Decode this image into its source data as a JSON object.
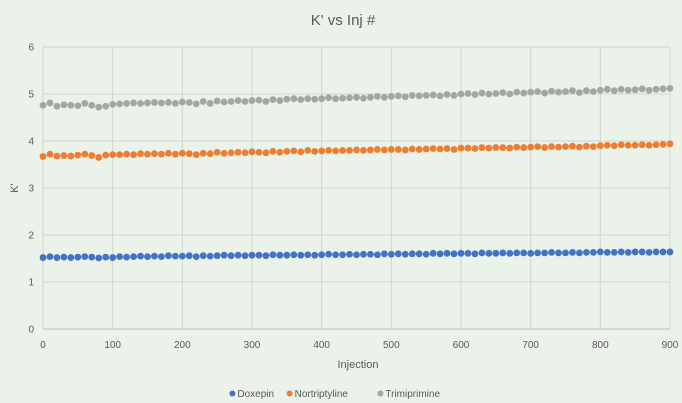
{
  "chart_data": {
    "type": "scatter",
    "title": "K' vs Inj #",
    "xlabel": "Injection",
    "ylabel": "K'",
    "xlim": [
      0,
      900
    ],
    "ylim": [
      0,
      6
    ],
    "xticks": [
      0,
      100,
      200,
      300,
      400,
      500,
      600,
      700,
      800,
      900
    ],
    "yticks": [
      0,
      1,
      2,
      3,
      4,
      5,
      6
    ],
    "grid": true,
    "legend_position": "bottom",
    "series": [
      {
        "name": "Doxepin",
        "color": "#4472c4",
        "x": [
          0,
          10,
          20,
          30,
          40,
          50,
          60,
          70,
          80,
          90,
          100,
          110,
          120,
          130,
          140,
          150,
          160,
          170,
          180,
          190,
          200,
          210,
          220,
          230,
          240,
          250,
          260,
          270,
          280,
          290,
          300,
          310,
          320,
          330,
          340,
          350,
          360,
          370,
          380,
          390,
          400,
          410,
          420,
          430,
          440,
          450,
          460,
          470,
          480,
          490,
          500,
          510,
          520,
          530,
          540,
          550,
          560,
          570,
          580,
          590,
          600,
          610,
          620,
          630,
          640,
          650,
          660,
          670,
          680,
          690,
          700,
          710,
          720,
          730,
          740,
          750,
          760,
          770,
          780,
          790,
          800,
          810,
          820,
          830,
          840,
          850,
          860,
          870,
          880,
          890,
          900
        ],
        "y": [
          1.52,
          1.54,
          1.52,
          1.53,
          1.52,
          1.53,
          1.54,
          1.53,
          1.51,
          1.53,
          1.52,
          1.54,
          1.53,
          1.54,
          1.55,
          1.54,
          1.55,
          1.54,
          1.56,
          1.55,
          1.55,
          1.56,
          1.54,
          1.56,
          1.55,
          1.56,
          1.57,
          1.56,
          1.57,
          1.56,
          1.57,
          1.57,
          1.56,
          1.58,
          1.57,
          1.57,
          1.58,
          1.57,
          1.58,
          1.57,
          1.58,
          1.59,
          1.58,
          1.58,
          1.59,
          1.58,
          1.59,
          1.59,
          1.58,
          1.6,
          1.59,
          1.6,
          1.59,
          1.6,
          1.6,
          1.59,
          1.61,
          1.6,
          1.61,
          1.6,
          1.61,
          1.61,
          1.6,
          1.62,
          1.61,
          1.61,
          1.62,
          1.61,
          1.62,
          1.62,
          1.61,
          1.62,
          1.62,
          1.63,
          1.62,
          1.62,
          1.63,
          1.62,
          1.63,
          1.63,
          1.64,
          1.63,
          1.63,
          1.64,
          1.63,
          1.64,
          1.64,
          1.63,
          1.64,
          1.64,
          1.64
        ]
      },
      {
        "name": "Nortriptyline",
        "color": "#ed7d31",
        "x": [
          0,
          10,
          20,
          30,
          40,
          50,
          60,
          70,
          80,
          90,
          100,
          110,
          120,
          130,
          140,
          150,
          160,
          170,
          180,
          190,
          200,
          210,
          220,
          230,
          240,
          250,
          260,
          270,
          280,
          290,
          300,
          310,
          320,
          330,
          340,
          350,
          360,
          370,
          380,
          390,
          400,
          410,
          420,
          430,
          440,
          450,
          460,
          470,
          480,
          490,
          500,
          510,
          520,
          530,
          540,
          550,
          560,
          570,
          580,
          590,
          600,
          610,
          620,
          630,
          640,
          650,
          660,
          670,
          680,
          690,
          700,
          710,
          720,
          730,
          740,
          750,
          760,
          770,
          780,
          790,
          800,
          810,
          820,
          830,
          840,
          850,
          860,
          870,
          880,
          890,
          900
        ],
        "y": [
          3.67,
          3.72,
          3.68,
          3.69,
          3.68,
          3.7,
          3.72,
          3.69,
          3.65,
          3.7,
          3.71,
          3.71,
          3.72,
          3.71,
          3.73,
          3.72,
          3.73,
          3.72,
          3.74,
          3.72,
          3.74,
          3.73,
          3.71,
          3.74,
          3.73,
          3.76,
          3.74,
          3.75,
          3.76,
          3.75,
          3.77,
          3.76,
          3.75,
          3.78,
          3.76,
          3.78,
          3.79,
          3.77,
          3.8,
          3.78,
          3.79,
          3.8,
          3.79,
          3.8,
          3.8,
          3.81,
          3.8,
          3.81,
          3.82,
          3.81,
          3.82,
          3.82,
          3.81,
          3.83,
          3.82,
          3.83,
          3.84,
          3.83,
          3.84,
          3.82,
          3.85,
          3.85,
          3.84,
          3.86,
          3.85,
          3.86,
          3.86,
          3.85,
          3.87,
          3.86,
          3.87,
          3.88,
          3.86,
          3.88,
          3.87,
          3.88,
          3.89,
          3.87,
          3.89,
          3.88,
          3.9,
          3.91,
          3.9,
          3.92,
          3.91,
          3.91,
          3.92,
          3.91,
          3.92,
          3.93,
          3.94
        ]
      },
      {
        "name": "Trimiprimine",
        "color": "#a5a5a5",
        "x": [
          0,
          10,
          20,
          30,
          40,
          50,
          60,
          70,
          80,
          90,
          100,
          110,
          120,
          130,
          140,
          150,
          160,
          170,
          180,
          190,
          200,
          210,
          220,
          230,
          240,
          250,
          260,
          270,
          280,
          290,
          300,
          310,
          320,
          330,
          340,
          350,
          360,
          370,
          380,
          390,
          400,
          410,
          420,
          430,
          440,
          450,
          460,
          470,
          480,
          490,
          500,
          510,
          520,
          530,
          540,
          550,
          560,
          570,
          580,
          590,
          600,
          610,
          620,
          630,
          640,
          650,
          660,
          670,
          680,
          690,
          700,
          710,
          720,
          730,
          740,
          750,
          760,
          770,
          780,
          790,
          800,
          810,
          820,
          830,
          840,
          850,
          860,
          870,
          880,
          890,
          900
        ],
        "y": [
          4.76,
          4.81,
          4.74,
          4.77,
          4.76,
          4.75,
          4.8,
          4.76,
          4.72,
          4.74,
          4.78,
          4.79,
          4.8,
          4.81,
          4.8,
          4.81,
          4.82,
          4.81,
          4.82,
          4.8,
          4.83,
          4.82,
          4.79,
          4.84,
          4.8,
          4.85,
          4.83,
          4.84,
          4.86,
          4.84,
          4.86,
          4.87,
          4.84,
          4.88,
          4.86,
          4.89,
          4.9,
          4.88,
          4.9,
          4.89,
          4.9,
          4.92,
          4.9,
          4.91,
          4.92,
          4.93,
          4.91,
          4.93,
          4.95,
          4.93,
          4.95,
          4.96,
          4.94,
          4.97,
          4.96,
          4.97,
          4.98,
          4.96,
          4.99,
          4.97,
          5.0,
          5.01,
          4.99,
          5.02,
          5.0,
          5.01,
          5.03,
          5.0,
          5.04,
          5.02,
          5.04,
          5.05,
          5.02,
          5.06,
          5.04,
          5.05,
          5.07,
          5.03,
          5.07,
          5.05,
          5.08,
          5.1,
          5.07,
          5.1,
          5.08,
          5.09,
          5.11,
          5.08,
          5.1,
          5.11,
          5.12
        ]
      }
    ]
  }
}
